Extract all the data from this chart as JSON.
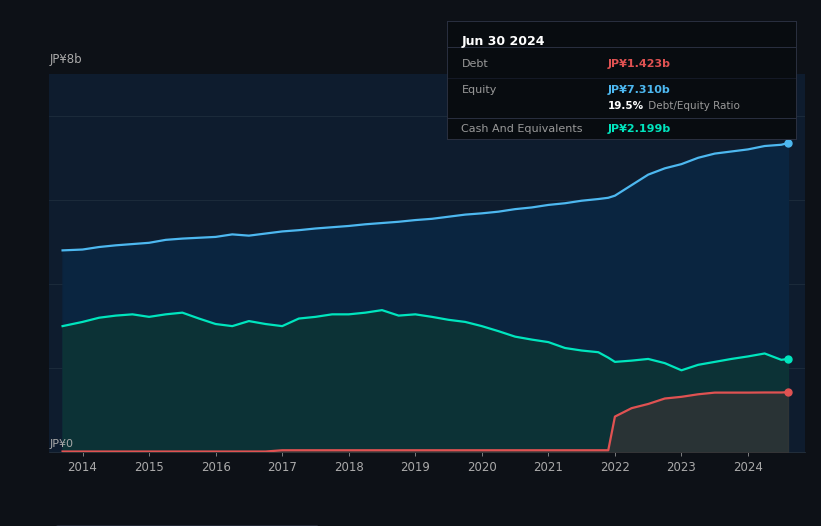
{
  "bg_color": "#0d1117",
  "plot_bg_color": "#0e1c2e",
  "title": "Jun 30 2024",
  "ylabel": "JP¥8b",
  "ylabel0": "JP¥0",
  "ylim": [
    0,
    9.0
  ],
  "xlim_start": 2013.5,
  "xlim_end": 2024.85,
  "xticks": [
    2014,
    2015,
    2016,
    2017,
    2018,
    2019,
    2020,
    2021,
    2022,
    2023,
    2024
  ],
  "debt_color": "#e05252",
  "equity_color": "#4db8f0",
  "cash_color": "#00e5be",
  "equity_fill_color": "#0a2540",
  "cash_fill_color": "#0d3535",
  "debt_fill_color": "#3a3535",
  "grid_color": "#1e2d3d",
  "tooltip_bg": "#080c10",
  "tooltip_border": "#2a3040",
  "debt_label": "Debt",
  "equity_label": "Equity",
  "cash_label": "Cash And Equivalents",
  "debt_value": "JP¥1.423b",
  "equity_value": "JP¥7.310b",
  "ratio_value": "19.5%",
  "cash_value": "JP¥2.199b",
  "years": [
    2013.7,
    2014.0,
    2014.25,
    2014.5,
    2014.75,
    2015.0,
    2015.25,
    2015.5,
    2015.75,
    2016.0,
    2016.25,
    2016.5,
    2016.75,
    2017.0,
    2017.25,
    2017.5,
    2017.75,
    2018.0,
    2018.25,
    2018.5,
    2018.75,
    2019.0,
    2019.25,
    2019.5,
    2019.75,
    2020.0,
    2020.25,
    2020.5,
    2020.75,
    2021.0,
    2021.25,
    2021.5,
    2021.75,
    2021.9,
    2022.0,
    2022.25,
    2022.5,
    2022.75,
    2023.0,
    2023.25,
    2023.5,
    2023.75,
    2024.0,
    2024.25,
    2024.5,
    2024.6
  ],
  "equity": [
    4.8,
    4.82,
    4.88,
    4.92,
    4.95,
    4.98,
    5.05,
    5.08,
    5.1,
    5.12,
    5.18,
    5.15,
    5.2,
    5.25,
    5.28,
    5.32,
    5.35,
    5.38,
    5.42,
    5.45,
    5.48,
    5.52,
    5.55,
    5.6,
    5.65,
    5.68,
    5.72,
    5.78,
    5.82,
    5.88,
    5.92,
    5.98,
    6.02,
    6.05,
    6.1,
    6.35,
    6.6,
    6.75,
    6.85,
    7.0,
    7.1,
    7.15,
    7.2,
    7.28,
    7.31,
    7.35
  ],
  "cash": [
    3.0,
    3.1,
    3.2,
    3.25,
    3.28,
    3.22,
    3.28,
    3.32,
    3.18,
    3.05,
    3.0,
    3.12,
    3.05,
    3.0,
    3.18,
    3.22,
    3.28,
    3.28,
    3.32,
    3.38,
    3.25,
    3.28,
    3.22,
    3.15,
    3.1,
    3.0,
    2.88,
    2.75,
    2.68,
    2.62,
    2.48,
    2.42,
    2.38,
    2.25,
    2.15,
    2.18,
    2.22,
    2.12,
    1.95,
    2.08,
    2.15,
    2.22,
    2.28,
    2.35,
    2.199,
    2.22
  ],
  "debt": [
    0.02,
    0.02,
    0.02,
    0.02,
    0.02,
    0.02,
    0.02,
    0.02,
    0.02,
    0.02,
    0.02,
    0.02,
    0.02,
    0.05,
    0.05,
    0.05,
    0.05,
    0.05,
    0.05,
    0.05,
    0.05,
    0.05,
    0.05,
    0.05,
    0.05,
    0.05,
    0.05,
    0.05,
    0.05,
    0.05,
    0.05,
    0.05,
    0.05,
    0.05,
    0.85,
    1.05,
    1.15,
    1.28,
    1.32,
    1.38,
    1.42,
    1.42,
    1.42,
    1.423,
    1.423,
    1.43
  ]
}
